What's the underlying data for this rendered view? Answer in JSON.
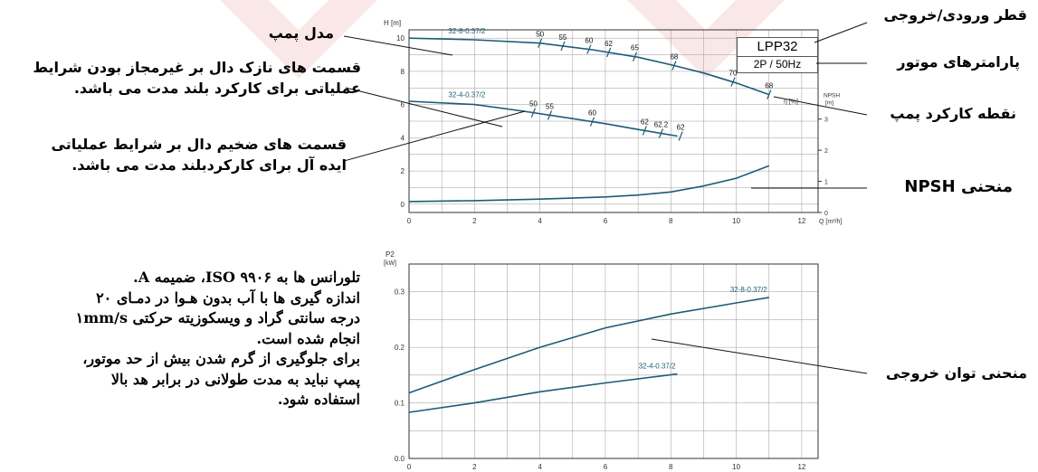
{
  "chart_data": [
    {
      "type": "line",
      "title": "LPP32",
      "subtitle": "2P / 50Hz",
      "xlabel": "Q [m³/h]",
      "ylabel": "H [m]",
      "y2label": "NPSH [m]",
      "efficiency_label": "η [%]",
      "xlim": [
        0,
        12.5
      ],
      "ylim": [
        -0.5,
        10.5
      ],
      "y2lim": [
        0,
        4
      ],
      "x_ticks": [
        0,
        2,
        4,
        6,
        8,
        10,
        12
      ],
      "y_ticks": [
        0,
        2,
        4,
        6,
        8,
        10
      ],
      "y2_ticks": [
        0,
        1,
        2,
        3
      ],
      "grid": true,
      "series": [
        {
          "name": "32-8-0.37/2",
          "x": [
            0,
            2,
            4,
            5.6,
            7,
            8,
            9,
            10,
            11
          ],
          "y": [
            10,
            9.9,
            9.7,
            9.3,
            8.85,
            8.4,
            7.9,
            7.3,
            6.6
          ],
          "efficiency_marks": [
            {
              "q": 4.0,
              "label": "50"
            },
            {
              "q": 4.7,
              "label": "55"
            },
            {
              "q": 5.5,
              "label": "60"
            },
            {
              "q": 6.1,
              "label": "62"
            },
            {
              "q": 6.9,
              "label": "65"
            },
            {
              "q": 8.1,
              "label": "68"
            },
            {
              "q": 9.9,
              "label": "70"
            },
            {
              "q": 11.0,
              "label": "68"
            }
          ]
        },
        {
          "name": "32-4-0.37/2",
          "x": [
            0,
            2,
            3.5,
            5,
            6,
            7,
            8.2
          ],
          "y": [
            6.2,
            6.0,
            5.6,
            5.15,
            4.85,
            4.5,
            4.1
          ],
          "efficiency_marks": [
            {
              "q": 3.8,
              "label": "50"
            },
            {
              "q": 4.3,
              "label": "55"
            },
            {
              "q": 5.6,
              "label": "60"
            },
            {
              "q": 7.2,
              "label": "62"
            },
            {
              "q": 7.7,
              "label": "62.2"
            },
            {
              "q": 8.3,
              "label": "62"
            }
          ]
        },
        {
          "name": "NPSH",
          "axis": "y2",
          "x": [
            0,
            2,
            4,
            6,
            7,
            8,
            9,
            10,
            11
          ],
          "y": [
            0.35,
            0.38,
            0.43,
            0.5,
            0.56,
            0.66,
            0.85,
            1.1,
            1.5
          ]
        }
      ]
    },
    {
      "type": "line",
      "ylabel": "P2 [kW]",
      "xlim": [
        0,
        12.5
      ],
      "ylim": [
        0,
        0.35
      ],
      "x_ticks": [
        0,
        2,
        4,
        6,
        8,
        10,
        12
      ],
      "y_ticks": [
        0,
        0.1,
        0.2,
        0.3
      ],
      "y_tick_labels": [
        "0.0",
        "0.1",
        "0.2",
        "0.3"
      ],
      "grid": true,
      "series": [
        {
          "name": "32-8-0.37/2",
          "x": [
            0,
            2,
            4,
            6,
            8,
            10,
            11
          ],
          "y": [
            0.118,
            0.16,
            0.2,
            0.235,
            0.26,
            0.28,
            0.29
          ]
        },
        {
          "name": "32-4-0.37/2",
          "x": [
            0,
            2,
            4,
            6,
            8.2
          ],
          "y": [
            0.083,
            0.1,
            0.12,
            0.136,
            0.152
          ]
        }
      ]
    }
  ],
  "annotations": {
    "pump_model": "مدل پمپ",
    "thin_line": [
      "قسمت های نازک دال بر غیرمجاز بودن شرایط",
      "عملیاتی برای کارکرد بلند مدت می باشد."
    ],
    "thick_line": [
      "قسمت های ضخیم دال بر شرایط عملیاتی",
      "ایده آل برای کارکردبلند مدت می باشد."
    ],
    "diameter": "قطر ورودی/خروجی",
    "motor_params": "پارامترهای موتور",
    "duty_point": "نقطه کارکرد پمپ",
    "npsh_curve": "منحنی NPSH",
    "power_curve": "منحنی توان خروجی"
  },
  "note": [
    "تلورانس ها به ۹۹۰۶ ISO، ضمیمه A.",
    "اندازه گیری ها با آب بدون هـوا در دمـای ۲۰",
    "درجه سانتی گراد و ویسکوزیته حرکتی ۱mm/s",
    "انجام شده است.",
    "برای جلوگیری از گرم شدن بیش از حد موتور،",
    "پمپ نباید به مدت طولانی در برابر هد بالا",
    "استفاده شود."
  ],
  "colors": {
    "curve": "#1d5b78",
    "grid": "#9a9a9a",
    "watermark": "#f6d5d5",
    "text": "#000000"
  }
}
